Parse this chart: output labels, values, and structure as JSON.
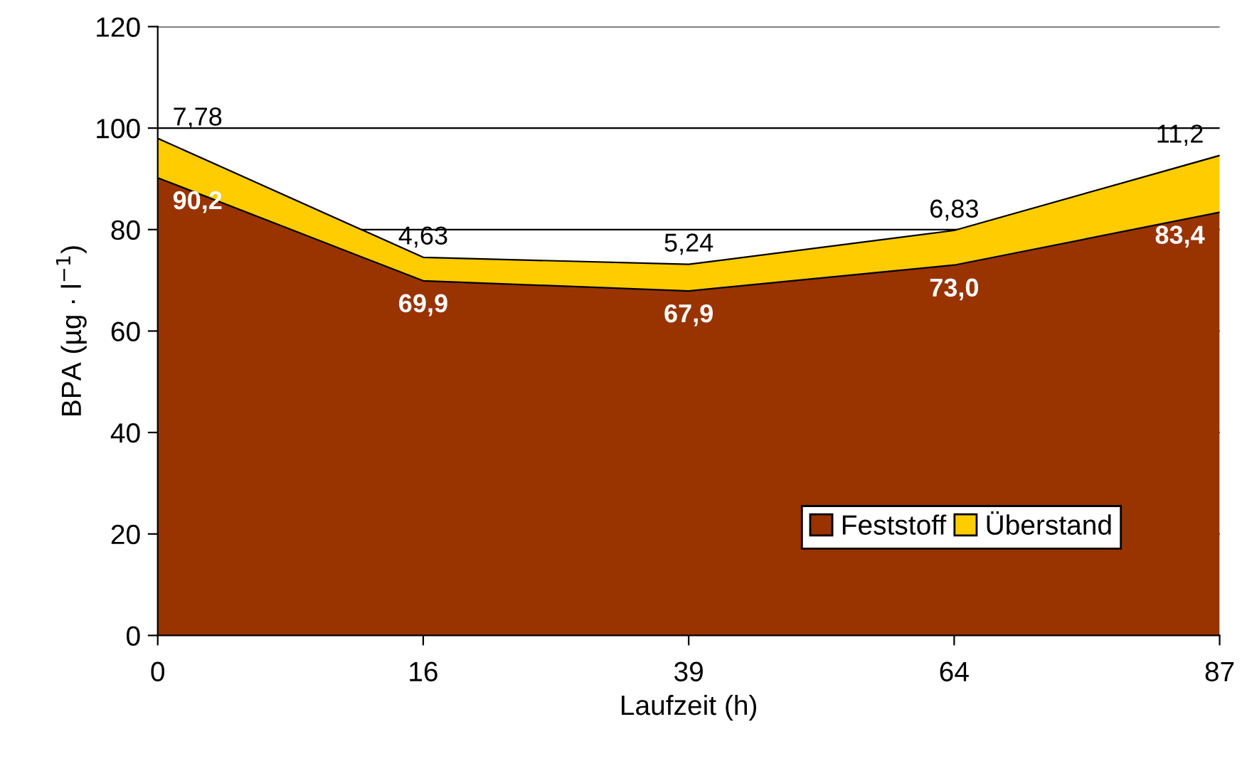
{
  "chart_data": {
    "type": "area",
    "stacked": true,
    "xlabel": "Laufzeit (h)",
    "ylabel": "BPA (µg · l$^{−1}$)",
    "categories": [
      "0",
      "16",
      "39",
      "64",
      "87"
    ],
    "series": [
      {
        "name": "Feststoff",
        "color": "#993300",
        "values": [
          90.2,
          69.9,
          67.9,
          73.0,
          83.4
        ],
        "value_labels": [
          "90,2",
          "69,9",
          "67,9",
          "73,0",
          "83,4"
        ]
      },
      {
        "name": "Überstand",
        "color": "#ffcc00",
        "values": [
          7.78,
          4.63,
          5.24,
          6.83,
          11.2
        ],
        "value_labels": [
          "7,78",
          "4,63",
          "5,24",
          "6,83",
          "11,2"
        ]
      }
    ],
    "ylim": [
      0,
      120
    ],
    "yticks": [
      0,
      20,
      40,
      60,
      80,
      100,
      120
    ],
    "grid": "y",
    "legend": "bottom right"
  }
}
